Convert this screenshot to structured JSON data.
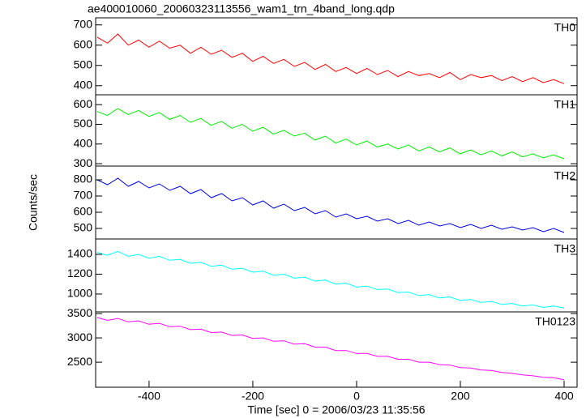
{
  "chart_data": [
    {
      "type": "line",
      "title": "ae400010060_20060323113556_wam1_trn_4band_long.qdp",
      "label": "TH0",
      "color": "#ff0000",
      "xlim": [
        -503,
        425
      ],
      "ylim": [
        355,
        735
      ],
      "yticks": [
        400,
        500,
        600,
        700
      ],
      "x": [
        -500,
        -480,
        -460,
        -440,
        -420,
        -400,
        -380,
        -360,
        -340,
        -320,
        -300,
        -280,
        -260,
        -240,
        -220,
        -200,
        -180,
        -160,
        -140,
        -120,
        -100,
        -80,
        -60,
        -40,
        -20,
        0,
        20,
        40,
        60,
        80,
        100,
        120,
        140,
        160,
        180,
        200,
        220,
        240,
        260,
        280,
        300,
        320,
        340,
        360,
        380,
        400
      ],
      "values": [
        640,
        610,
        655,
        600,
        625,
        590,
        620,
        585,
        600,
        560,
        590,
        555,
        575,
        540,
        560,
        520,
        545,
        510,
        530,
        495,
        515,
        480,
        505,
        470,
        490,
        460,
        485,
        455,
        475,
        445,
        470,
        450,
        460,
        440,
        465,
        430,
        455,
        440,
        450,
        425,
        445,
        420,
        440,
        415,
        430,
        410
      ]
    },
    {
      "type": "line",
      "label": "TH1",
      "color": "#00ee00",
      "xlim": [
        -503,
        425
      ],
      "ylim": [
        288,
        650
      ],
      "yticks": [
        300,
        400,
        500,
        600
      ],
      "x": [
        -500,
        -480,
        -460,
        -440,
        -420,
        -400,
        -380,
        -360,
        -340,
        -320,
        -300,
        -280,
        -260,
        -240,
        -220,
        -200,
        -180,
        -160,
        -140,
        -120,
        -100,
        -80,
        -60,
        -40,
        -20,
        0,
        20,
        40,
        60,
        80,
        100,
        120,
        140,
        160,
        180,
        200,
        220,
        240,
        260,
        280,
        300,
        320,
        340,
        360,
        380,
        400
      ],
      "values": [
        565,
        545,
        580,
        550,
        570,
        540,
        560,
        525,
        545,
        510,
        530,
        495,
        515,
        480,
        500,
        465,
        485,
        450,
        470,
        440,
        455,
        420,
        440,
        405,
        425,
        395,
        415,
        385,
        400,
        375,
        395,
        365,
        385,
        360,
        380,
        350,
        370,
        345,
        365,
        340,
        360,
        335,
        350,
        330,
        345,
        325
      ]
    },
    {
      "type": "line",
      "label": "TH2",
      "color": "#0000dd",
      "ylabel": "Counts/sec",
      "xlim": [
        -503,
        425
      ],
      "ylim": [
        435,
        885
      ],
      "yticks": [
        500,
        600,
        700,
        800
      ],
      "x": [
        -500,
        -480,
        -460,
        -440,
        -420,
        -400,
        -380,
        -360,
        -340,
        -320,
        -300,
        -280,
        -260,
        -240,
        -220,
        -200,
        -180,
        -160,
        -140,
        -120,
        -100,
        -80,
        -60,
        -40,
        -20,
        0,
        20,
        40,
        60,
        80,
        100,
        120,
        140,
        160,
        180,
        200,
        220,
        240,
        260,
        280,
        300,
        320,
        340,
        360,
        380,
        400
      ],
      "values": [
        800,
        770,
        810,
        760,
        790,
        750,
        775,
        735,
        760,
        715,
        740,
        690,
        715,
        670,
        690,
        645,
        670,
        625,
        650,
        610,
        630,
        590,
        610,
        570,
        590,
        560,
        575,
        545,
        560,
        530,
        550,
        520,
        540,
        515,
        530,
        505,
        525,
        500,
        520,
        495,
        510,
        490,
        505,
        480,
        500,
        475
      ]
    },
    {
      "type": "line",
      "label": "TH3",
      "color": "#00ffff",
      "xlim": [
        -503,
        425
      ],
      "ylim": [
        820,
        1555
      ],
      "yticks": [
        1000,
        1200,
        1400
      ],
      "x": [
        -500,
        -480,
        -460,
        -440,
        -420,
        -400,
        -380,
        -360,
        -340,
        -320,
        -300,
        -280,
        -260,
        -240,
        -220,
        -200,
        -180,
        -160,
        -140,
        -120,
        -100,
        -80,
        -60,
        -40,
        -20,
        0,
        20,
        40,
        60,
        80,
        100,
        120,
        140,
        160,
        180,
        200,
        220,
        240,
        260,
        280,
        300,
        320,
        340,
        360,
        380,
        400
      ],
      "values": [
        1420,
        1390,
        1430,
        1380,
        1400,
        1360,
        1380,
        1340,
        1350,
        1310,
        1320,
        1280,
        1290,
        1250,
        1260,
        1220,
        1230,
        1190,
        1200,
        1160,
        1170,
        1130,
        1140,
        1100,
        1110,
        1070,
        1080,
        1045,
        1050,
        1015,
        1020,
        985,
        995,
        960,
        970,
        935,
        945,
        915,
        925,
        895,
        905,
        880,
        890,
        865,
        880,
        860
      ]
    },
    {
      "type": "line",
      "label": "TH0123",
      "color": "#ff00ff",
      "xlabel": "Time [sec] 0 = 2006/03/23 11:35:56",
      "xlim": [
        -503,
        425
      ],
      "xticks": [
        -400,
        -200,
        0,
        200,
        400
      ],
      "ylim": [
        1985,
        3535
      ],
      "yticks": [
        2500,
        3000,
        3500
      ],
      "x": [
        -500,
        -480,
        -460,
        -440,
        -420,
        -400,
        -380,
        -360,
        -340,
        -320,
        -300,
        -280,
        -260,
        -240,
        -220,
        -200,
        -180,
        -160,
        -140,
        -120,
        -100,
        -80,
        -60,
        -40,
        -20,
        0,
        20,
        40,
        60,
        80,
        100,
        120,
        140,
        160,
        180,
        200,
        220,
        240,
        260,
        280,
        300,
        320,
        340,
        360,
        380,
        400
      ],
      "values": [
        3420,
        3360,
        3400,
        3330,
        3350,
        3280,
        3300,
        3230,
        3240,
        3170,
        3180,
        3110,
        3120,
        3050,
        3060,
        2990,
        3000,
        2930,
        2940,
        2870,
        2880,
        2810,
        2810,
        2740,
        2740,
        2680,
        2680,
        2620,
        2620,
        2560,
        2560,
        2500,
        2500,
        2450,
        2440,
        2390,
        2380,
        2340,
        2330,
        2290,
        2270,
        2240,
        2220,
        2190,
        2180,
        2140
      ]
    }
  ]
}
